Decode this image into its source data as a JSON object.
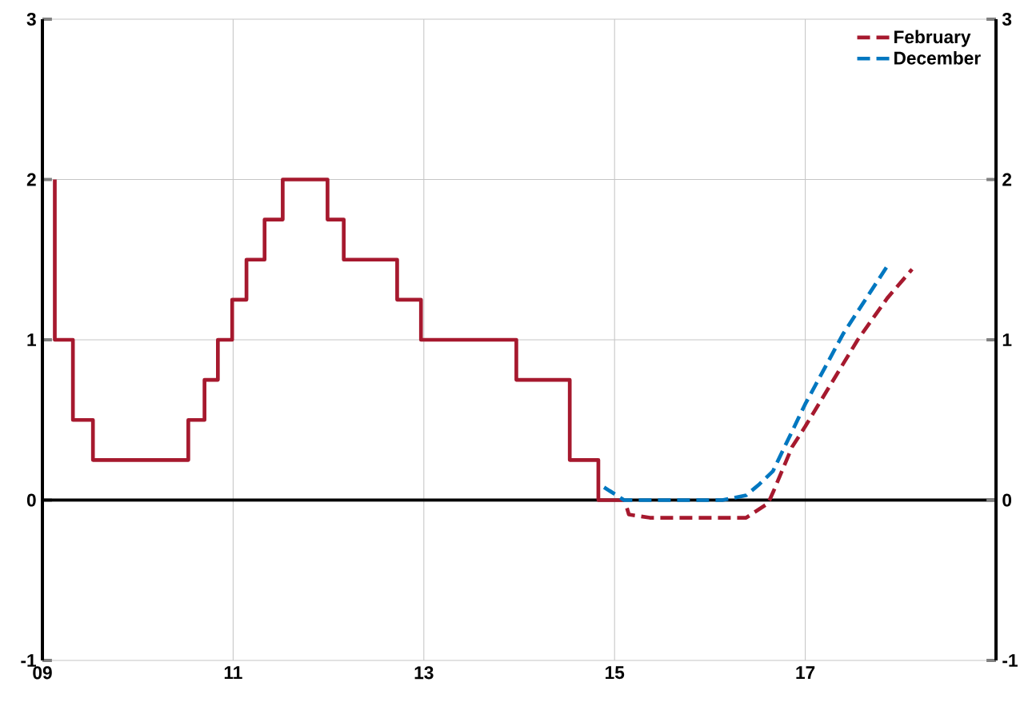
{
  "chart_data": {
    "type": "line",
    "series": [
      {
        "type": "step",
        "color": "#a6192e",
        "line_style": "solid",
        "x": [
          2009.13,
          2009.13,
          2009.32,
          2009.53,
          2010.53,
          2010.7,
          2010.84,
          2010.99,
          2011.14,
          2011.33,
          2011.52,
          2011.99,
          2012.16,
          2012.72,
          2012.97,
          2013.97,
          2014.53,
          2014.83,
          2015.1
        ],
        "values": [
          2,
          1,
          0.5,
          0.25,
          0.5,
          0.75,
          1,
          1.25,
          1.5,
          1.75,
          2,
          1.75,
          1.5,
          1.25,
          1,
          0.75,
          0.25,
          0,
          0
        ]
      },
      {
        "name": "February",
        "color": "#a6192e",
        "line_style": "dashed",
        "x": [
          2015.13,
          2015.15,
          2015.37,
          2016.38,
          2016.61,
          2016.67,
          2016.86,
          2017.0,
          2017.55,
          2017.86,
          2018.12
        ],
        "values": [
          -0.05,
          -0.09,
          -0.11,
          -0.11,
          -0.02,
          0.06,
          0.33,
          0.46,
          1.0,
          1.26,
          1.44
        ]
      },
      {
        "name": "December",
        "color": "#0077c0",
        "line_style": "dashed",
        "x": [
          2014.89,
          2015.1,
          2016.13,
          2016.38,
          2016.52,
          2016.66,
          2017.0,
          2017.4,
          2017.86
        ],
        "values": [
          0.08,
          0,
          0,
          0.03,
          0.1,
          0.18,
          0.6,
          1.04,
          1.46
        ]
      }
    ],
    "xlim": [
      2009,
      2019
    ],
    "xticks": [
      {
        "value": 2009,
        "label": "09"
      },
      {
        "value": 2011,
        "label": "11"
      },
      {
        "value": 2013,
        "label": "13"
      },
      {
        "value": 2015,
        "label": "15"
      },
      {
        "value": 2017,
        "label": "17"
      }
    ],
    "ylim": [
      -1,
      3
    ],
    "yticks": [
      -1,
      0,
      1,
      2,
      3
    ],
    "y2lim": [
      -1,
      3
    ],
    "y2ticks": [
      -1,
      0,
      1,
      2,
      3
    ],
    "ref_lines": [
      {
        "axis": "y",
        "value": 0,
        "color": "#000000"
      }
    ],
    "grid": true,
    "legend": "top right"
  }
}
